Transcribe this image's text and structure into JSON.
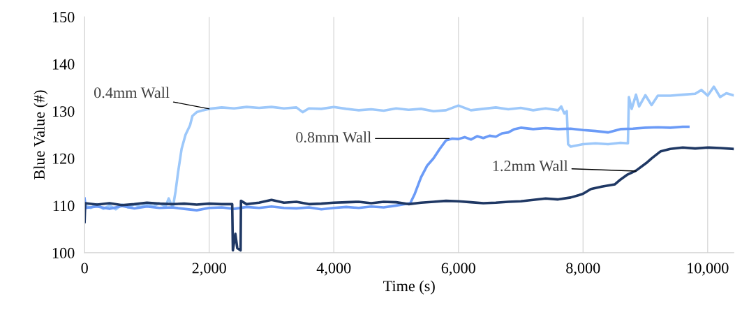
{
  "chart_data": {
    "type": "line",
    "xlabel": "Time (s)",
    "ylabel": "Blue Value (#)",
    "xlim": [
      0,
      10420
    ],
    "xticks": [
      {
        "value": 0,
        "label": "0"
      },
      {
        "value": 2000,
        "label": "2,000"
      },
      {
        "value": 4000,
        "label": "4,000"
      },
      {
        "value": 6000,
        "label": "6,000"
      },
      {
        "value": 8000,
        "label": "8,000"
      },
      {
        "value": 10000,
        "label": "10,000"
      }
    ],
    "ylim": [
      100,
      150
    ],
    "yticks": [
      100,
      110,
      120,
      130,
      140,
      150
    ],
    "grid": "x",
    "legend": false,
    "marker": "none",
    "line_style": "solid",
    "series": [
      {
        "color": "#9dc8fa",
        "x": [
          0,
          100,
          200,
          300,
          400,
          500,
          600,
          700,
          800,
          900,
          1000,
          1100,
          1200,
          1300,
          1350,
          1400,
          1422,
          1460,
          1500,
          1557,
          1620,
          1692,
          1731,
          1800,
          1900,
          2000,
          2200,
          2400,
          2600,
          2800,
          3000,
          3200,
          3400,
          3500,
          3600,
          3800,
          4000,
          4200,
          4400,
          4600,
          4800,
          5000,
          5200,
          5400,
          5600,
          5800,
          6000,
          6200,
          6400,
          6600,
          6800,
          7000,
          7200,
          7400,
          7600,
          7650,
          7700,
          7739,
          7760,
          7800,
          8000,
          8200,
          8400,
          8600,
          8720,
          8736,
          8780,
          8850,
          8900,
          9000,
          9100,
          9200,
          9400,
          9600,
          9800,
          9900,
          10000,
          10100,
          10200,
          10300,
          10405
        ],
        "values": [
          110,
          109.5,
          110.3,
          109.3,
          110,
          109.2,
          110.2,
          109.6,
          110.3,
          109.7,
          110.4,
          109.8,
          110.5,
          109.8,
          111.5,
          110,
          110,
          113,
          117,
          122,
          125,
          127,
          129,
          129.8,
          130.2,
          130.5,
          130.8,
          130.6,
          130.9,
          130.7,
          130.9,
          130.6,
          130.8,
          129.8,
          130.6,
          130.5,
          130.9,
          130.5,
          130.2,
          130.4,
          130.1,
          130.6,
          130.3,
          130.5,
          130,
          130.2,
          131.2,
          130.2,
          130.5,
          130.8,
          130.4,
          130.7,
          130.2,
          130.6,
          130.2,
          131,
          129.5,
          130,
          123,
          122.5,
          123,
          123.2,
          123,
          123.3,
          123.2,
          133,
          130.5,
          133.5,
          131,
          133.4,
          131.3,
          133.3,
          133.3,
          133.5,
          133.7,
          134.5,
          133.3,
          135.2,
          133,
          133.8,
          133.4
        ]
      },
      {
        "color": "#6b9bf7",
        "x": [
          0,
          20,
          200,
          400,
          600,
          800,
          1000,
          1200,
          1400,
          1600,
          1800,
          2000,
          2200,
          2400,
          2600,
          2800,
          3000,
          3200,
          3400,
          3600,
          3800,
          4000,
          4200,
          4400,
          4600,
          4800,
          5000,
          5227,
          5300,
          5400,
          5500,
          5600,
          5700,
          5800,
          5900,
          6000,
          6100,
          6200,
          6300,
          6400,
          6500,
          6600,
          6700,
          6800,
          6900,
          7000,
          7200,
          7400,
          7600,
          7800,
          8000,
          8200,
          8400,
          8600,
          8800,
          9000,
          9200,
          9400,
          9600,
          9690
        ],
        "values": [
          111.5,
          109.5,
          109.8,
          109.3,
          109.9,
          109.4,
          109.8,
          109.5,
          109.6,
          109.3,
          109,
          109.5,
          109.6,
          109.3,
          109.7,
          109.5,
          109.8,
          109.5,
          109.4,
          109.6,
          109.2,
          109.5,
          109.7,
          109.5,
          109.8,
          109.6,
          110,
          110.5,
          112.5,
          116,
          118.5,
          120,
          122,
          123.8,
          124.2,
          124.1,
          124.5,
          124,
          124.7,
          124.3,
          124.8,
          124.6,
          125.3,
          125.5,
          126.2,
          126.5,
          126.2,
          126.4,
          126.2,
          126.3,
          126,
          125.8,
          125.5,
          126.2,
          126.3,
          126.5,
          126.6,
          126.5,
          126.7,
          126.7
        ]
      },
      {
        "color": "#1f3864",
        "x": [
          0,
          10,
          200,
          400,
          600,
          800,
          1000,
          1200,
          1400,
          1600,
          1800,
          2000,
          2200,
          2369,
          2380,
          2420,
          2450,
          2504,
          2510,
          2600,
          2800,
          3000,
          3200,
          3400,
          3600,
          3800,
          4000,
          4200,
          4400,
          4600,
          4800,
          5000,
          5200,
          5400,
          5600,
          5800,
          6000,
          6200,
          6400,
          6600,
          6800,
          7000,
          7200,
          7400,
          7600,
          7800,
          7932,
          8000,
          8125,
          8300,
          8512,
          8600,
          8705,
          8850,
          9014,
          9100,
          9246,
          9400,
          9600,
          9800,
          10000,
          10200,
          10405
        ],
        "values": [
          106.5,
          110.5,
          110.2,
          110.5,
          110.1,
          110.3,
          110.6,
          110.4,
          110.3,
          110.4,
          110.2,
          110.4,
          110.3,
          110.3,
          100.5,
          104,
          101,
          100.5,
          111,
          110.3,
          110.6,
          111.2,
          110.6,
          110.8,
          110.3,
          110.4,
          110.6,
          110.7,
          110.8,
          110.5,
          110.8,
          110.7,
          110.3,
          110.6,
          110.8,
          111,
          110.9,
          110.7,
          110.5,
          110.6,
          110.8,
          110.9,
          111.2,
          111.5,
          111.3,
          111.7,
          112.2,
          112.5,
          113.5,
          114,
          114.5,
          115.5,
          116.5,
          117.4,
          119,
          120,
          121.5,
          122,
          122.3,
          122.1,
          122.3,
          122.2,
          122
        ]
      }
    ],
    "annotations": [
      {
        "text": "0.4mm Wall",
        "x": 2000,
        "y": 130.5
      },
      {
        "text": "0.8mm Wall",
        "x": 5850,
        "y": 124.2
      },
      {
        "text": "1.2mm Wall",
        "x": 8848,
        "y": 117.3
      }
    ]
  }
}
